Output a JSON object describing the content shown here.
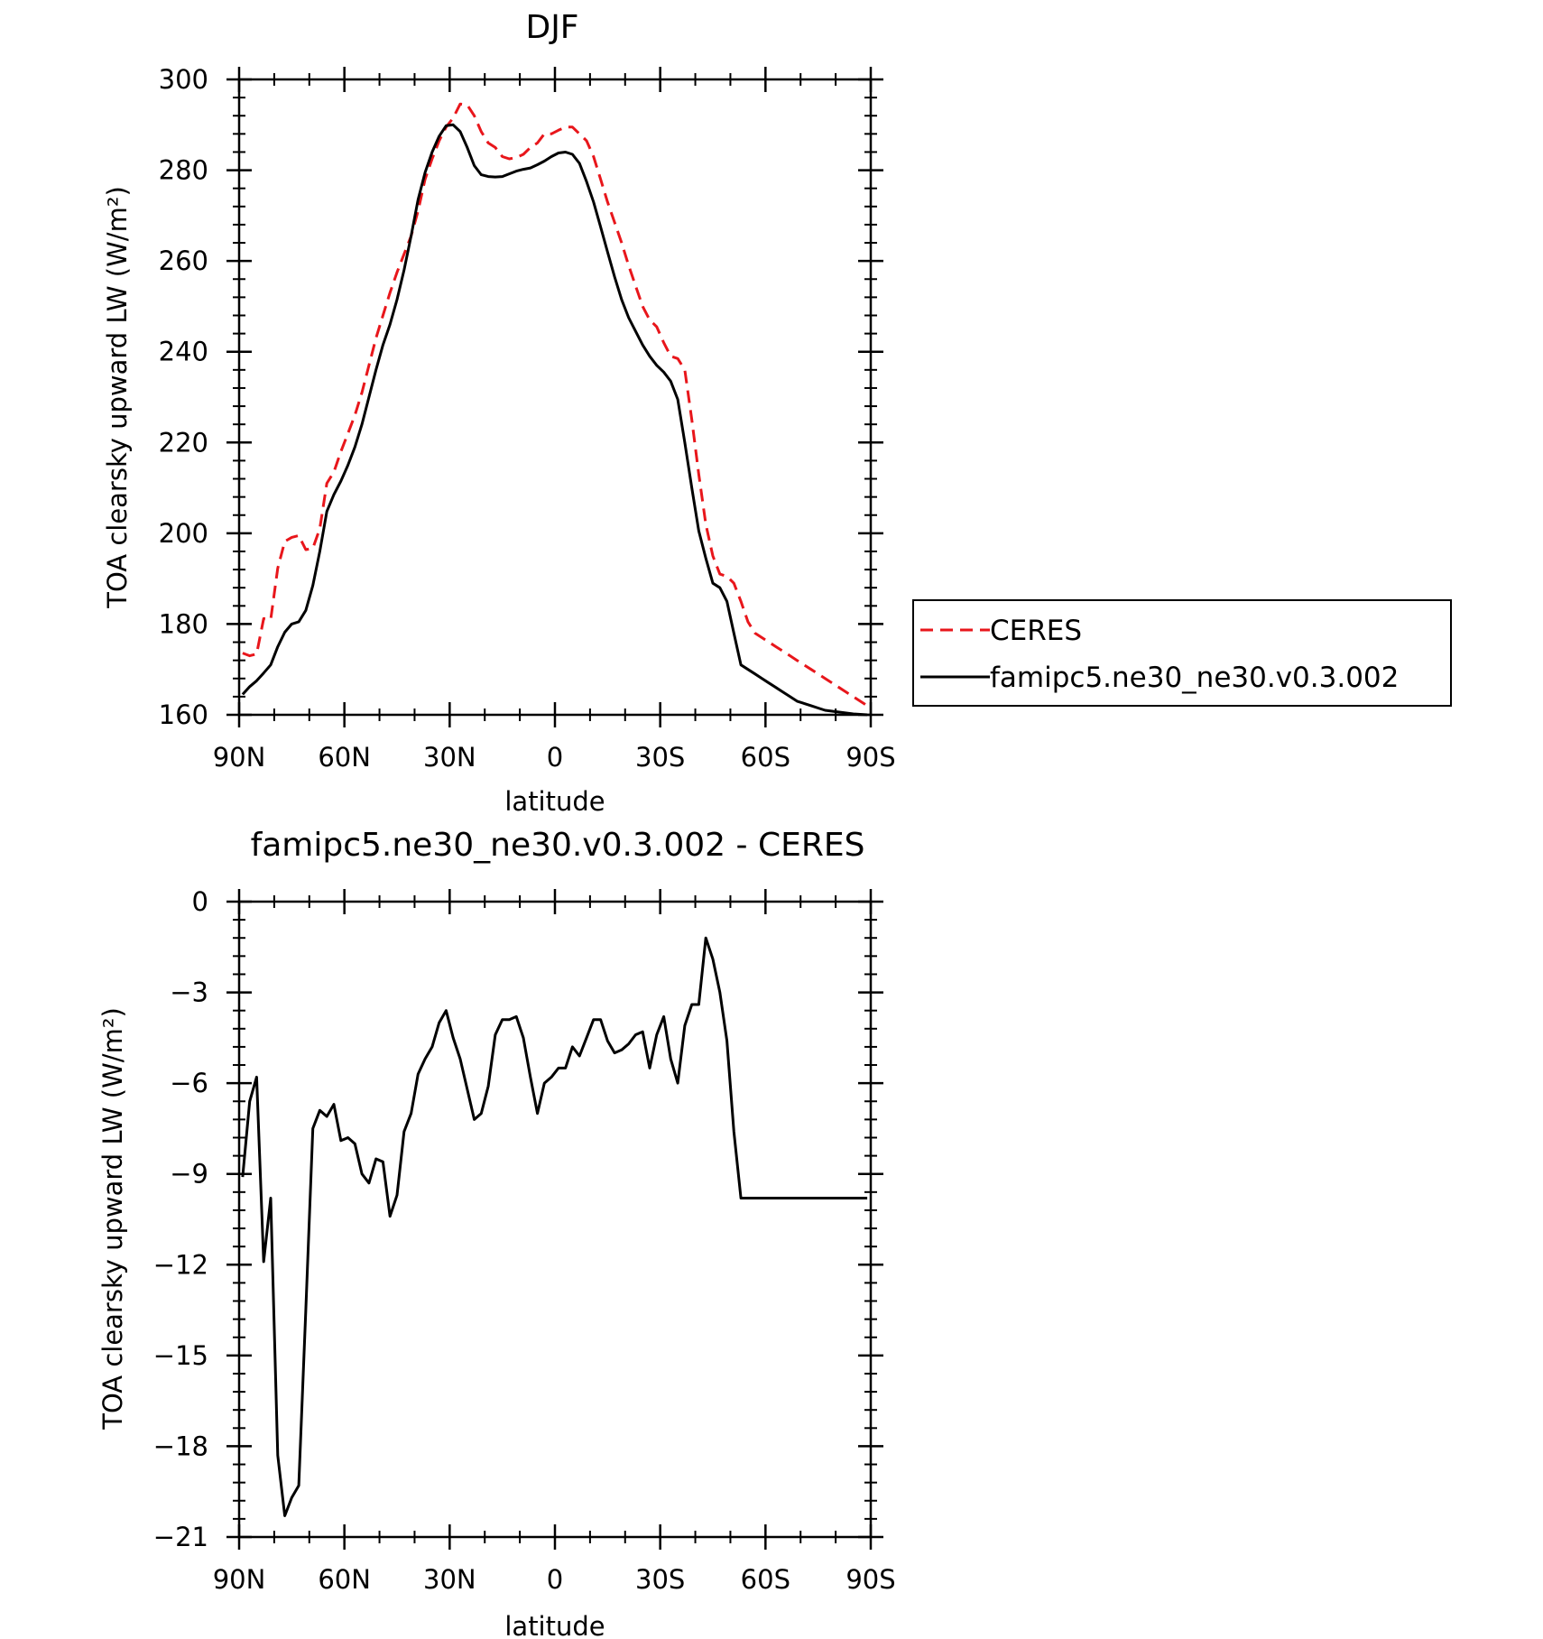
{
  "chart_data": [
    {
      "type": "line",
      "title": "DJF",
      "xlabel": "latitude",
      "ylabel": "TOA clearsky upward LW (W/m²)",
      "xlim": [
        90,
        -90
      ],
      "ylim": [
        160,
        300
      ],
      "x_ticks": [
        90,
        60,
        30,
        0,
        -30,
        -60,
        -90
      ],
      "x_tick_labels": [
        "90N",
        "60N",
        "30N",
        "0",
        "30S",
        "60S",
        "90S"
      ],
      "y_ticks": [
        160,
        180,
        200,
        220,
        240,
        260,
        280,
        300
      ],
      "y_tick_labels": [
        "160",
        "180",
        "200",
        "220",
        "240",
        "260",
        "280",
        "300"
      ],
      "grid": false,
      "legend_position": "right",
      "series": [
        {
          "name": "CERES",
          "color": "#e8161b",
          "dash": "dashed",
          "x": [
            89,
            87,
            85,
            83,
            81,
            79,
            77,
            75,
            73,
            71,
            69,
            67,
            65,
            63,
            61,
            59,
            57,
            55,
            53,
            51,
            49,
            47,
            45,
            43,
            41,
            39,
            37,
            35,
            33,
            31,
            29,
            27,
            25,
            23,
            21,
            19,
            17,
            15,
            13,
            11,
            9,
            7,
            5,
            3,
            1,
            -1,
            -3,
            -5,
            -7,
            -9,
            -11,
            -13,
            -15,
            -17,
            -19,
            -21,
            -23,
            -25,
            -27,
            -29,
            -31,
            -33,
            -35,
            -37,
            -39,
            -41,
            -43,
            -45,
            -47,
            -49,
            -51,
            -53,
            -55,
            -57,
            -59,
            -61,
            -63,
            -65,
            -67,
            -69,
            -71,
            -73,
            -75,
            -77,
            -79,
            -81,
            -83,
            -85,
            -87,
            -89
          ],
          "y": [
            173.6,
            173.0,
            173.4,
            181.2,
            181.0,
            192.3,
            198.2,
            199.1,
            199.5,
            196.4,
            196.7,
            201.0,
            211.0,
            213.5,
            218.0,
            222.0,
            226.0,
            231.0,
            237.0,
            243.0,
            248.0,
            253.0,
            257.5,
            261.5,
            265.5,
            271.0,
            278.0,
            282.5,
            286.5,
            289.5,
            291.5,
            294.6,
            294.4,
            292.0,
            288.5,
            286.0,
            285.0,
            283.0,
            282.5,
            282.8,
            283.5,
            285.0,
            286.0,
            288.0,
            288.0,
            288.8,
            289.5,
            289.5,
            288.0,
            286.5,
            283.0,
            278.0,
            273.0,
            268.5,
            264.0,
            259.0,
            254.5,
            250.0,
            247.0,
            245.5,
            242.0,
            239.0,
            238.5,
            236.0,
            225.0,
            213.0,
            202.0,
            195.0,
            191.0,
            190.5,
            189.0,
            185.0,
            180.5,
            178.0,
            177.0,
            176.0,
            175.0,
            174.0,
            173.0,
            172.0,
            171.0,
            170.0,
            169.0,
            168.0,
            167.0,
            166.0,
            165.0,
            164.0,
            163.0,
            162.0
          ]
        },
        {
          "name": "famipc5.ne30_ne30.v0.3.002",
          "color": "#000000",
          "dash": "solid",
          "x": [
            89,
            87,
            85,
            83,
            81,
            79,
            77,
            75,
            73,
            71,
            69,
            67,
            65,
            63,
            61,
            59,
            57,
            55,
            53,
            51,
            49,
            47,
            45,
            43,
            41,
            39,
            37,
            35,
            33,
            31,
            29,
            27,
            25,
            23,
            21,
            19,
            17,
            15,
            13,
            11,
            9,
            7,
            5,
            3,
            1,
            -1,
            -3,
            -5,
            -7,
            -9,
            -11,
            -13,
            -15,
            -17,
            -19,
            -21,
            -23,
            -25,
            -27,
            -29,
            -31,
            -33,
            -35,
            -37,
            -39,
            -41,
            -43,
            -45,
            -47,
            -49,
            -51,
            -53,
            -55,
            -57,
            -59,
            -61,
            -63,
            -65,
            -67,
            -69,
            -71,
            -73,
            -75,
            -77,
            -79,
            -81,
            -83,
            -85,
            -87,
            -89
          ],
          "y": [
            164.5,
            166.2,
            167.5,
            169.2,
            171.0,
            175.0,
            178.2,
            180.0,
            180.5,
            183.0,
            188.5,
            196.0,
            204.8,
            208.5,
            211.5,
            215.0,
            219.0,
            224.0,
            230.0,
            236.0,
            241.5,
            246.0,
            251.5,
            258.0,
            265.5,
            273.5,
            279.5,
            284.0,
            287.5,
            289.8,
            290.0,
            288.5,
            285.0,
            281.0,
            279.0,
            278.6,
            278.5,
            278.6,
            279.2,
            279.8,
            280.2,
            280.5,
            281.2,
            282.0,
            283.0,
            283.8,
            284.0,
            283.5,
            281.5,
            277.5,
            273.0,
            267.5,
            262.0,
            256.5,
            251.5,
            247.5,
            244.5,
            241.5,
            239.0,
            237.0,
            235.5,
            233.5,
            229.5,
            220.0,
            210.0,
            200.5,
            194.5,
            189.0,
            188.0,
            185.0,
            178.0,
            171.0,
            170.0,
            169.0,
            168.0,
            167.0,
            166.0,
            165.0,
            164.0,
            163.0,
            162.5,
            162.0,
            161.5,
            161.0,
            160.8,
            160.6,
            160.4,
            160.2,
            160.1,
            160.0
          ]
        }
      ]
    },
    {
      "type": "line",
      "title": "famipc5.ne30_ne30.v0.3.002 - CERES",
      "xlabel": "latitude",
      "ylabel": "TOA clearsky upward LW (W/m²)",
      "xlim": [
        90,
        -90
      ],
      "ylim": [
        -21,
        0
      ],
      "x_ticks": [
        90,
        60,
        30,
        0,
        -30,
        -60,
        -90
      ],
      "x_tick_labels": [
        "90N",
        "60N",
        "30N",
        "0",
        "30S",
        "60S",
        "90S"
      ],
      "y_ticks": [
        -21,
        -18,
        -15,
        -12,
        -9,
        -6,
        -3,
        0
      ],
      "y_tick_labels": [
        "−21",
        "−18",
        "−15",
        "−12",
        "−9",
        "−6",
        "−3",
        "0"
      ],
      "grid": false,
      "series": [
        {
          "color": "#000000",
          "dash": "solid",
          "x": [
            89,
            87,
            85,
            83,
            81,
            79,
            77,
            75,
            73,
            71,
            69,
            67,
            65,
            63,
            61,
            59,
            57,
            55,
            53,
            51,
            49,
            47,
            45,
            43,
            41,
            39,
            37,
            35,
            33,
            31,
            29,
            27,
            25,
            23,
            21,
            19,
            17,
            15,
            13,
            11,
            9,
            7,
            5,
            3,
            1,
            -1,
            -3,
            -5,
            -7,
            -9,
            -11,
            -13,
            -15,
            -17,
            -19,
            -21,
            -23,
            -25,
            -27,
            -29,
            -31,
            -33,
            -35,
            -37,
            -39,
            -41,
            -43,
            -45,
            -47,
            -49,
            -51,
            -53,
            -55,
            -57,
            -59,
            -61,
            -63,
            -65,
            -67,
            -69,
            -71,
            -73,
            -75,
            -77,
            -79,
            -81,
            -83,
            -85,
            -87,
            -89
          ],
          "y": [
            -9.1,
            -6.6,
            -5.8,
            -11.9,
            -9.8,
            -18.3,
            -20.3,
            -19.7,
            -19.3,
            -13.5,
            -7.5,
            -6.9,
            -7.1,
            -6.7,
            -7.9,
            -7.8,
            -8.0,
            -9.0,
            -9.3,
            -8.5,
            -8.6,
            -10.4,
            -9.7,
            -7.6,
            -7.0,
            -5.7,
            -5.2,
            -4.8,
            -4.0,
            -3.6,
            -4.5,
            -5.2,
            -6.2,
            -7.2,
            -7.0,
            -6.1,
            -4.4,
            -3.9,
            -3.9,
            -3.8,
            -4.5,
            -5.8,
            -7.0,
            -6.0,
            -5.8,
            -5.5,
            -5.5,
            -4.8,
            -5.1,
            -4.5,
            -3.9,
            -3.9,
            -4.6,
            -5.0,
            -4.9,
            -4.7,
            -4.4,
            -4.3,
            -5.5,
            -4.4,
            -3.8,
            -5.2,
            -6.0,
            -4.1,
            -3.4,
            -3.4,
            -1.2,
            -1.9,
            -3.0,
            -4.6,
            -7.6,
            -9.8,
            -9.8,
            -9.8,
            -9.8,
            -9.8,
            -9.8,
            -9.8,
            -9.8,
            -9.8,
            -9.8,
            -9.8,
            -9.8,
            -9.8,
            -9.8,
            -9.8,
            -9.8,
            -9.8,
            -9.8,
            -9.8
          ]
        }
      ]
    }
  ]
}
